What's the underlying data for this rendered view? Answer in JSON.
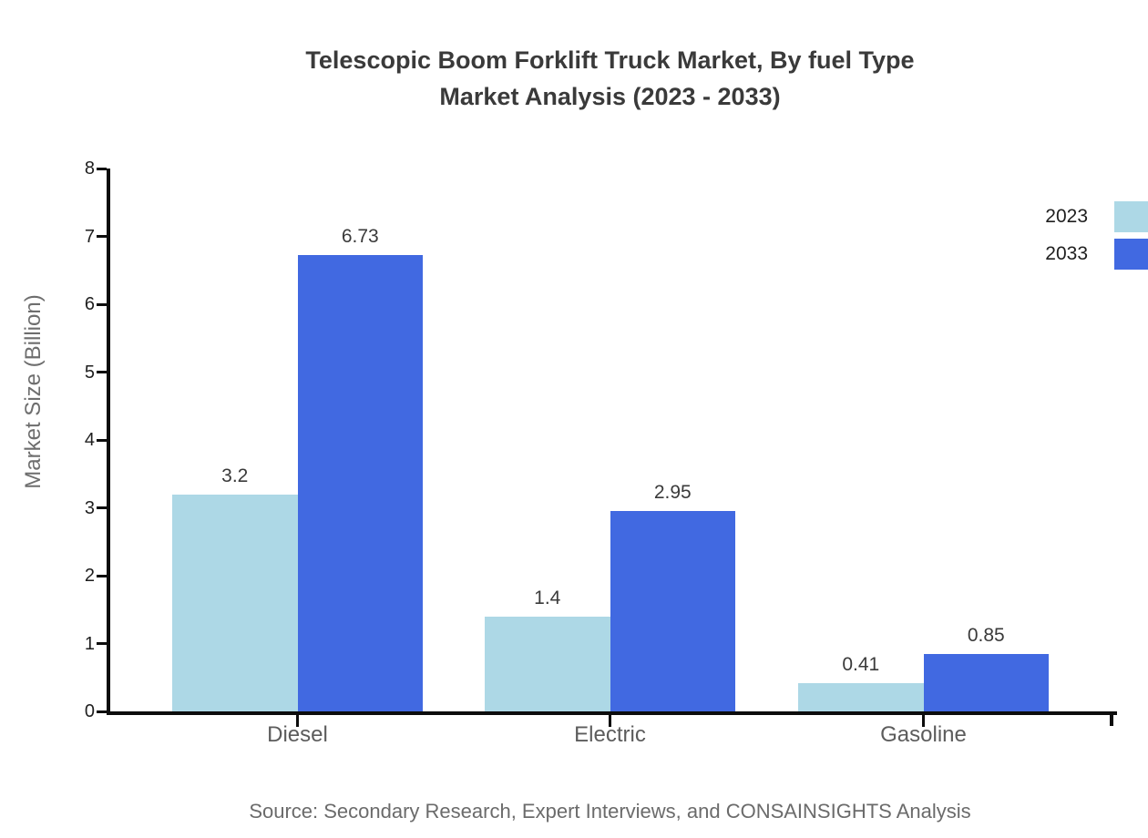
{
  "title": {
    "line1": "Telescopic Boom Forklift Truck Market, By fuel Type",
    "line2": "Market Analysis (2023 - 2033)"
  },
  "chart_data": {
    "type": "bar",
    "title": "Telescopic Boom Forklift Truck Market, By fuel Type Market Analysis (2023 - 2033)",
    "categories": [
      "Diesel",
      "Electric",
      "Gasoline"
    ],
    "series": [
      {
        "name": "2023",
        "color": "#ADD8E6",
        "values": [
          3.2,
          1.4,
          0.41
        ]
      },
      {
        "name": "2033",
        "color": "#4169E1",
        "values": [
          6.73,
          2.95,
          0.85
        ]
      }
    ],
    "xlabel": "",
    "ylabel": "Market Size (Billion)",
    "ylim": [
      0,
      8
    ],
    "yticks": [
      0,
      1,
      2,
      3,
      4,
      5,
      6,
      7,
      8
    ],
    "grid": false,
    "value_labels_shown": true,
    "legend_position": "right edge, outside plot, upper right"
  },
  "source": "Source: Secondary Research, Expert Interviews, and CONSAINSIGHTS Analysis"
}
